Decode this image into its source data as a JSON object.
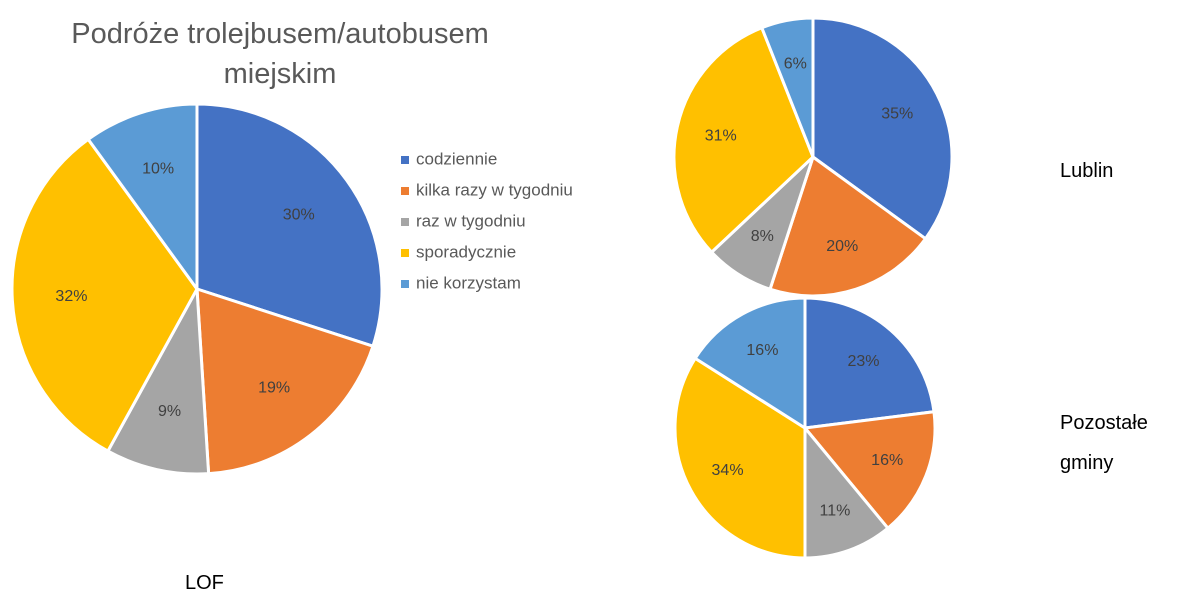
{
  "chart_data": [
    {
      "type": "pie",
      "title": "Podróże trolejbusem/autobusem miejskim",
      "caption": "LOF",
      "categories": [
        "codziennie",
        "kilka razy w tygodniu",
        "raz w tygodniu",
        "sporadycznie",
        "nie korzystam"
      ],
      "colors": [
        "#4472c4",
        "#ed7d31",
        "#a5a5a5",
        "#ffc000",
        "#5b9bd5"
      ],
      "values": [
        30,
        19,
        9,
        32,
        10
      ],
      "value_labels": [
        "30%",
        "19%",
        "9%",
        "32%",
        "10%"
      ]
    },
    {
      "type": "pie",
      "caption": "Lublin",
      "values": [
        35,
        20,
        8,
        31,
        6
      ],
      "value_labels": [
        "35%",
        "20%",
        "8%",
        "31%",
        "6%"
      ]
    },
    {
      "type": "pie",
      "caption": "Pozostałe gminy",
      "values": [
        23,
        16,
        11,
        34,
        16
      ],
      "value_labels": [
        "23%",
        "16%",
        "11%",
        "34%",
        "16%"
      ]
    }
  ]
}
